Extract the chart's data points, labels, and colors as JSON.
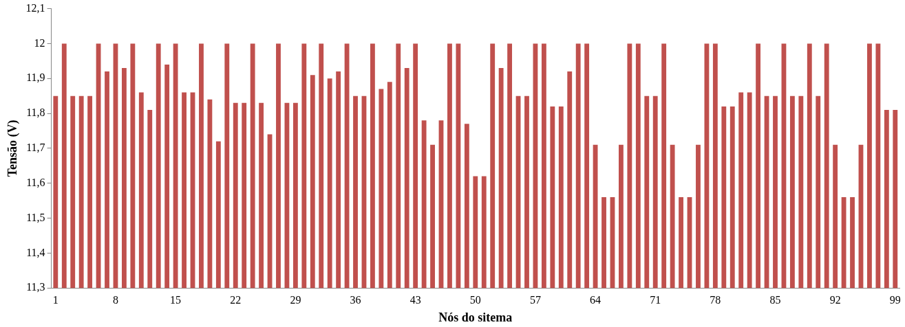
{
  "chart_data": {
    "type": "bar",
    "xlabel": "Nós do sitema",
    "ylabel": "Tensão (V)",
    "categories": [
      "1",
      null,
      null,
      null,
      null,
      null,
      null,
      "8",
      null,
      null,
      null,
      null,
      null,
      null,
      "15",
      null,
      null,
      null,
      null,
      null,
      null,
      "22",
      null,
      null,
      null,
      null,
      null,
      null,
      "29",
      null,
      null,
      null,
      null,
      null,
      null,
      "36",
      null,
      null,
      null,
      null,
      null,
      null,
      "43",
      null,
      null,
      null,
      null,
      null,
      null,
      "50",
      null,
      null,
      null,
      null,
      null,
      null,
      "57",
      null,
      null,
      null,
      null,
      null,
      null,
      "64",
      null,
      null,
      null,
      null,
      null,
      null,
      "71",
      null,
      null,
      null,
      null,
      null,
      null,
      "78",
      null,
      null,
      null,
      null,
      null,
      null,
      "85",
      null,
      null,
      null,
      null,
      null,
      null,
      "92",
      null,
      null,
      null,
      null,
      null,
      null,
      "99"
    ],
    "values": [
      11.85,
      12,
      11.85,
      11.85,
      11.85,
      12,
      11.92,
      12,
      11.93,
      12,
      11.86,
      11.81,
      12,
      11.94,
      12,
      11.86,
      11.86,
      12,
      11.84,
      11.72,
      12,
      11.83,
      11.83,
      12,
      11.83,
      11.74,
      12,
      11.83,
      11.83,
      12,
      11.91,
      12,
      11.9,
      11.92,
      12,
      11.85,
      11.85,
      12,
      11.87,
      11.89,
      12,
      11.93,
      12,
      11.78,
      11.71,
      11.78,
      12,
      12,
      11.77,
      11.62,
      11.62,
      12,
      11.93,
      12,
      11.85,
      11.85,
      12,
      12,
      11.82,
      11.82,
      11.92,
      12,
      12,
      11.71,
      11.56,
      11.56,
      11.71,
      12,
      12,
      11.85,
      11.85,
      12,
      11.71,
      11.56,
      11.56,
      11.71,
      12,
      12,
      11.82,
      11.82,
      11.86,
      11.86,
      12,
      11.85,
      11.85,
      12,
      11.85,
      11.85,
      12,
      11.85,
      12,
      11.71,
      11.56,
      11.56,
      11.71,
      12,
      12,
      11.81,
      11.81
    ],
    "color": "#c0504d",
    "ylim": [
      11.3,
      12.1
    ],
    "yticks": [
      {
        "value": 11.3,
        "label": "11,3"
      },
      {
        "value": 11.4,
        "label": "11,4"
      },
      {
        "value": 11.5,
        "label": "11,5"
      },
      {
        "value": 11.6,
        "label": "11,6"
      },
      {
        "value": 11.7,
        "label": "11,7"
      },
      {
        "value": 11.8,
        "label": "11,8"
      },
      {
        "value": 11.9,
        "label": "11,9"
      },
      {
        "value": 12,
        "label": "12"
      },
      {
        "value": 12.1,
        "label": "12,1"
      }
    ],
    "grid": false,
    "legend": false
  }
}
